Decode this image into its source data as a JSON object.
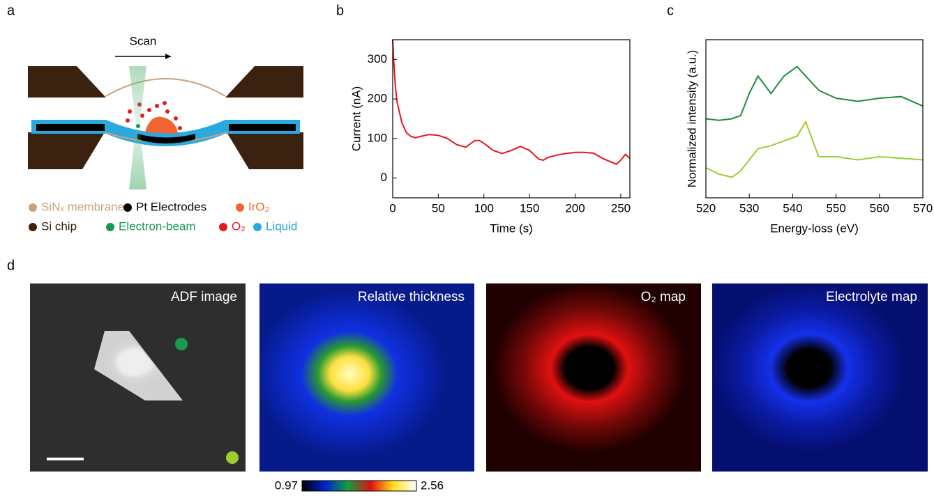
{
  "panel_labels": [
    "a",
    "b",
    "c",
    "d"
  ],
  "diagram": {
    "scan_label": "Scan",
    "legend": [
      {
        "label": "SiNₓ membrane",
        "color": "#c9a27c",
        "text_color": "#c9a27c"
      },
      {
        "label": "Pt Electrodes",
        "color": "#000000",
        "text_color": "#000000"
      },
      {
        "label": "IrO₂",
        "color": "#f26430",
        "text_color": "#f26430"
      },
      {
        "label": "Si chip",
        "color": "#3b2210",
        "text_color": "#3b2210"
      },
      {
        "label": "Electron-beam",
        "color": "#1a9a50",
        "text_color": "#1a9a50"
      },
      {
        "label": "O₂",
        "color": "#e41a1c",
        "text_color": "#e41a1c"
      },
      {
        "label": "Liquid",
        "color": "#29a9e0",
        "text_color": "#29a9e0"
      }
    ]
  },
  "chart_data": [
    {
      "type": "line",
      "xlabel": "Time (s)",
      "ylabel": "Current (nA)",
      "x": [
        0,
        1,
        3,
        5,
        8,
        10,
        15,
        20,
        25,
        30,
        40,
        50,
        60,
        70,
        80,
        90,
        95,
        100,
        110,
        120,
        130,
        140,
        150,
        160,
        165,
        170,
        180,
        190,
        200,
        210,
        220,
        230,
        240,
        245,
        250,
        255,
        260
      ],
      "series": [
        {
          "color": "#e8141b",
          "values": [
            350,
            300,
            230,
            190,
            160,
            140,
            115,
            105,
            102,
            105,
            110,
            108,
            100,
            85,
            78,
            95,
            95,
            88,
            70,
            62,
            70,
            80,
            70,
            48,
            45,
            52,
            58,
            62,
            65,
            65,
            63,
            50,
            40,
            35,
            45,
            60,
            50
          ]
        }
      ],
      "xlim": [
        0,
        260
      ],
      "xticks": [
        0,
        50,
        100,
        150,
        200,
        250
      ],
      "ylim": [
        -50,
        350
      ],
      "yticks": [
        0,
        100,
        200,
        300
      ]
    },
    {
      "type": "line",
      "xlabel": "Energy-loss (eV)",
      "ylabel": "Normalized intensity (a.u.)",
      "x": [
        520,
        523,
        526,
        528,
        530,
        532,
        535,
        538,
        541,
        543,
        546,
        550,
        555,
        560,
        565,
        570
      ],
      "series": [
        {
          "color": "#1e8c3a",
          "values": [
            0.5,
            0.49,
            0.5,
            0.52,
            0.66,
            0.77,
            0.66,
            0.77,
            0.83,
            0.77,
            0.68,
            0.63,
            0.61,
            0.63,
            0.64,
            0.58
          ]
        },
        {
          "color": "#9acd32",
          "values": [
            0.19,
            0.15,
            0.13,
            0.17,
            0.24,
            0.31,
            0.33,
            0.36,
            0.39,
            0.48,
            0.26,
            0.26,
            0.24,
            0.26,
            0.25,
            0.24
          ]
        }
      ],
      "xlim": [
        520,
        570
      ],
      "xticks": [
        520,
        530,
        540,
        550,
        560,
        570
      ],
      "ylim": [
        0,
        1
      ],
      "yticks": []
    }
  ],
  "maps": {
    "titles": [
      "ADF image",
      "Relative thickness",
      "O₂ map",
      "Electrolyte map"
    ],
    "colorbar": {
      "min_label": "0.97",
      "max_label": "2.56"
    }
  }
}
